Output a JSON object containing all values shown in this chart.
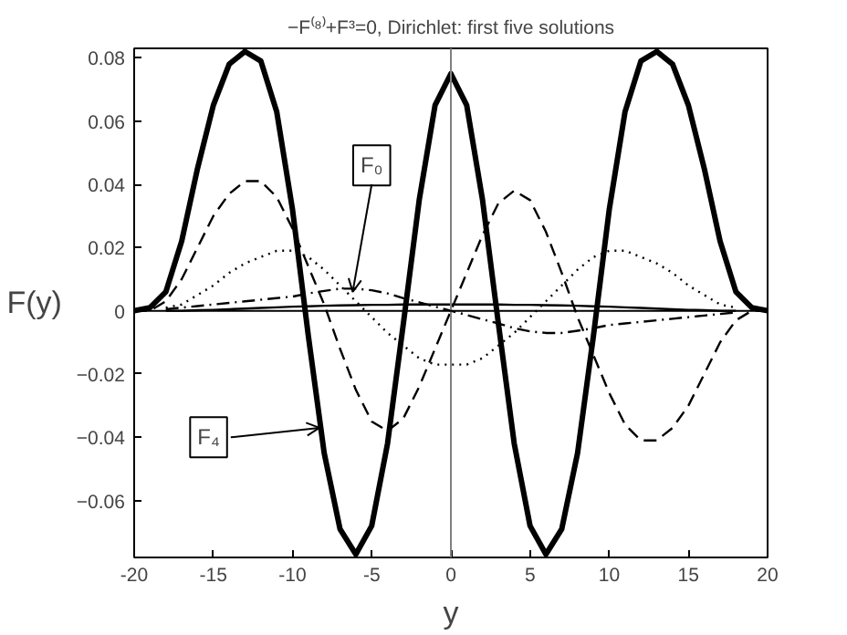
{
  "chart_data": {
    "type": "line",
    "title": "−F⁽⁸⁾+F³=0, Dirichlet: first five solutions",
    "xlabel": "y",
    "ylabel": "F(y)",
    "x": [
      -20,
      -19,
      -18,
      -17,
      -16,
      -15,
      -14,
      -13,
      -12,
      -11,
      -10,
      -9,
      -8,
      -7,
      -6,
      -5,
      -4,
      -3,
      -2,
      -1,
      0,
      1,
      2,
      3,
      4,
      5,
      6,
      7,
      8,
      9,
      10,
      11,
      12,
      13,
      14,
      15,
      16,
      17,
      18,
      19,
      20
    ],
    "series": [
      {
        "color": "#000000",
        "line_style": "solid",
        "x": [
          -18,
          -17,
          -16,
          -15,
          -14,
          -13,
          -12,
          -11,
          -10,
          -9,
          -8,
          -7,
          -6,
          -5,
          -4,
          -3,
          -2,
          -1,
          0,
          1,
          2,
          3,
          4,
          5,
          6,
          7,
          8,
          9,
          10,
          11,
          12,
          13,
          14,
          15,
          16,
          17,
          18
        ],
        "values": [
          0,
          0,
          0.0002,
          0.0003,
          0.0005,
          0.0007,
          0.0009,
          0.0011,
          0.0013,
          0.0014,
          0.0016,
          0.0017,
          0.0018,
          0.0019,
          0.0019,
          0.002,
          0.002,
          0.002,
          0.002,
          0.002,
          0.002,
          0.002,
          0.0019,
          0.0019,
          0.0018,
          0.0017,
          0.0016,
          0.0014,
          0.0013,
          0.0011,
          0.0009,
          0.0007,
          0.0005,
          0.0003,
          0.0002,
          0,
          0
        ]
      },
      {
        "color": "#000000",
        "line_style": "dashdot",
        "x": [
          -18,
          -17,
          -16,
          -15,
          -14,
          -13,
          -12,
          -11,
          -10,
          -9,
          -8,
          -7,
          -6,
          -5,
          -4,
          -3,
          -2,
          -1,
          0,
          1,
          2,
          3,
          4,
          5,
          6,
          7,
          8,
          9,
          10,
          11,
          12,
          13,
          14,
          15,
          16,
          17,
          18
        ],
        "values": [
          0.0005,
          0.001,
          0.0015,
          0.002,
          0.0025,
          0.003,
          0.0035,
          0.004,
          0.0045,
          0.0055,
          0.0063,
          0.007,
          0.007,
          0.0065,
          0.0055,
          0.004,
          0.0027,
          0.0013,
          0,
          -0.0013,
          -0.0027,
          -0.004,
          -0.0055,
          -0.0065,
          -0.007,
          -0.007,
          -0.0063,
          -0.0055,
          -0.0045,
          -0.004,
          -0.0035,
          -0.003,
          -0.0025,
          -0.002,
          -0.0015,
          -0.001,
          -0.0005
        ]
      },
      {
        "color": "#000000",
        "line_style": "dotted",
        "x": [
          -18,
          -17,
          -16,
          -15,
          -14,
          -13,
          -12,
          -11,
          -10,
          -9,
          -8,
          -7,
          -6,
          -5,
          -4,
          -3,
          -2,
          -1,
          0,
          1,
          2,
          3,
          4,
          5,
          6,
          7,
          8,
          9,
          10,
          11,
          12,
          13,
          14,
          15,
          16,
          17,
          18
        ],
        "values": [
          0.001,
          0.002,
          0.005,
          0.008,
          0.012,
          0.015,
          0.017,
          0.019,
          0.019,
          0.017,
          0.013,
          0.008,
          0.003,
          -0.002,
          -0.007,
          -0.011,
          -0.015,
          -0.017,
          -0.017,
          -0.017,
          -0.015,
          -0.011,
          -0.007,
          -0.002,
          0.003,
          0.008,
          0.013,
          0.017,
          0.019,
          0.019,
          0.017,
          0.015,
          0.012,
          0.008,
          0.005,
          0.002,
          0.001
        ]
      },
      {
        "color": "#000000",
        "line_style": "dashed",
        "values": [
          0,
          0,
          0.003,
          0.01,
          0.02,
          0.03,
          0.037,
          0.041,
          0.041,
          0.036,
          0.026,
          0.014,
          0.002,
          -0.012,
          -0.025,
          -0.035,
          -0.038,
          -0.034,
          -0.024,
          -0.012,
          0,
          0.012,
          0.024,
          0.034,
          0.038,
          0.035,
          0.025,
          0.012,
          -0.002,
          -0.014,
          -0.026,
          -0.036,
          -0.041,
          -0.041,
          -0.037,
          -0.03,
          -0.02,
          -0.01,
          -0.003,
          0,
          0
        ]
      },
      {
        "color": "#000000",
        "line_style": "solid",
        "values": [
          0,
          0.001,
          0.006,
          0.022,
          0.045,
          0.065,
          0.078,
          0.082,
          0.079,
          0.063,
          0.032,
          -0.008,
          -0.045,
          -0.069,
          -0.077,
          -0.068,
          -0.042,
          -0.004,
          0.035,
          0.065,
          0.075,
          0.065,
          0.035,
          -0.004,
          -0.042,
          -0.068,
          -0.077,
          -0.069,
          -0.045,
          -0.008,
          0.032,
          0.063,
          0.079,
          0.082,
          0.078,
          0.065,
          0.045,
          0.022,
          0.006,
          0.001,
          0
        ]
      }
    ],
    "xlim": [
      -20,
      20
    ],
    "ylim": [
      -0.078,
      0.083
    ],
    "xticks": [
      -20,
      -15,
      -10,
      -5,
      0,
      5,
      10,
      15,
      20
    ],
    "yticks": [
      {
        "value": -0.06,
        "label": "−0.06"
      },
      {
        "value": -0.04,
        "label": "−0.04"
      },
      {
        "value": -0.02,
        "label": "−0.02"
      },
      0,
      0.02,
      0.04,
      0.06,
      0.08
    ],
    "ref_lines": [
      {
        "axis": "x",
        "value": 0,
        "color": "#808080"
      },
      {
        "axis": "y",
        "value": 0,
        "color": "#000000"
      }
    ],
    "annotations": [
      {
        "text": "F₀",
        "x": -6.2,
        "y": 0.006
      },
      {
        "text": "F₄",
        "x": -8.3,
        "y": -0.037
      }
    ],
    "grid": false
  }
}
